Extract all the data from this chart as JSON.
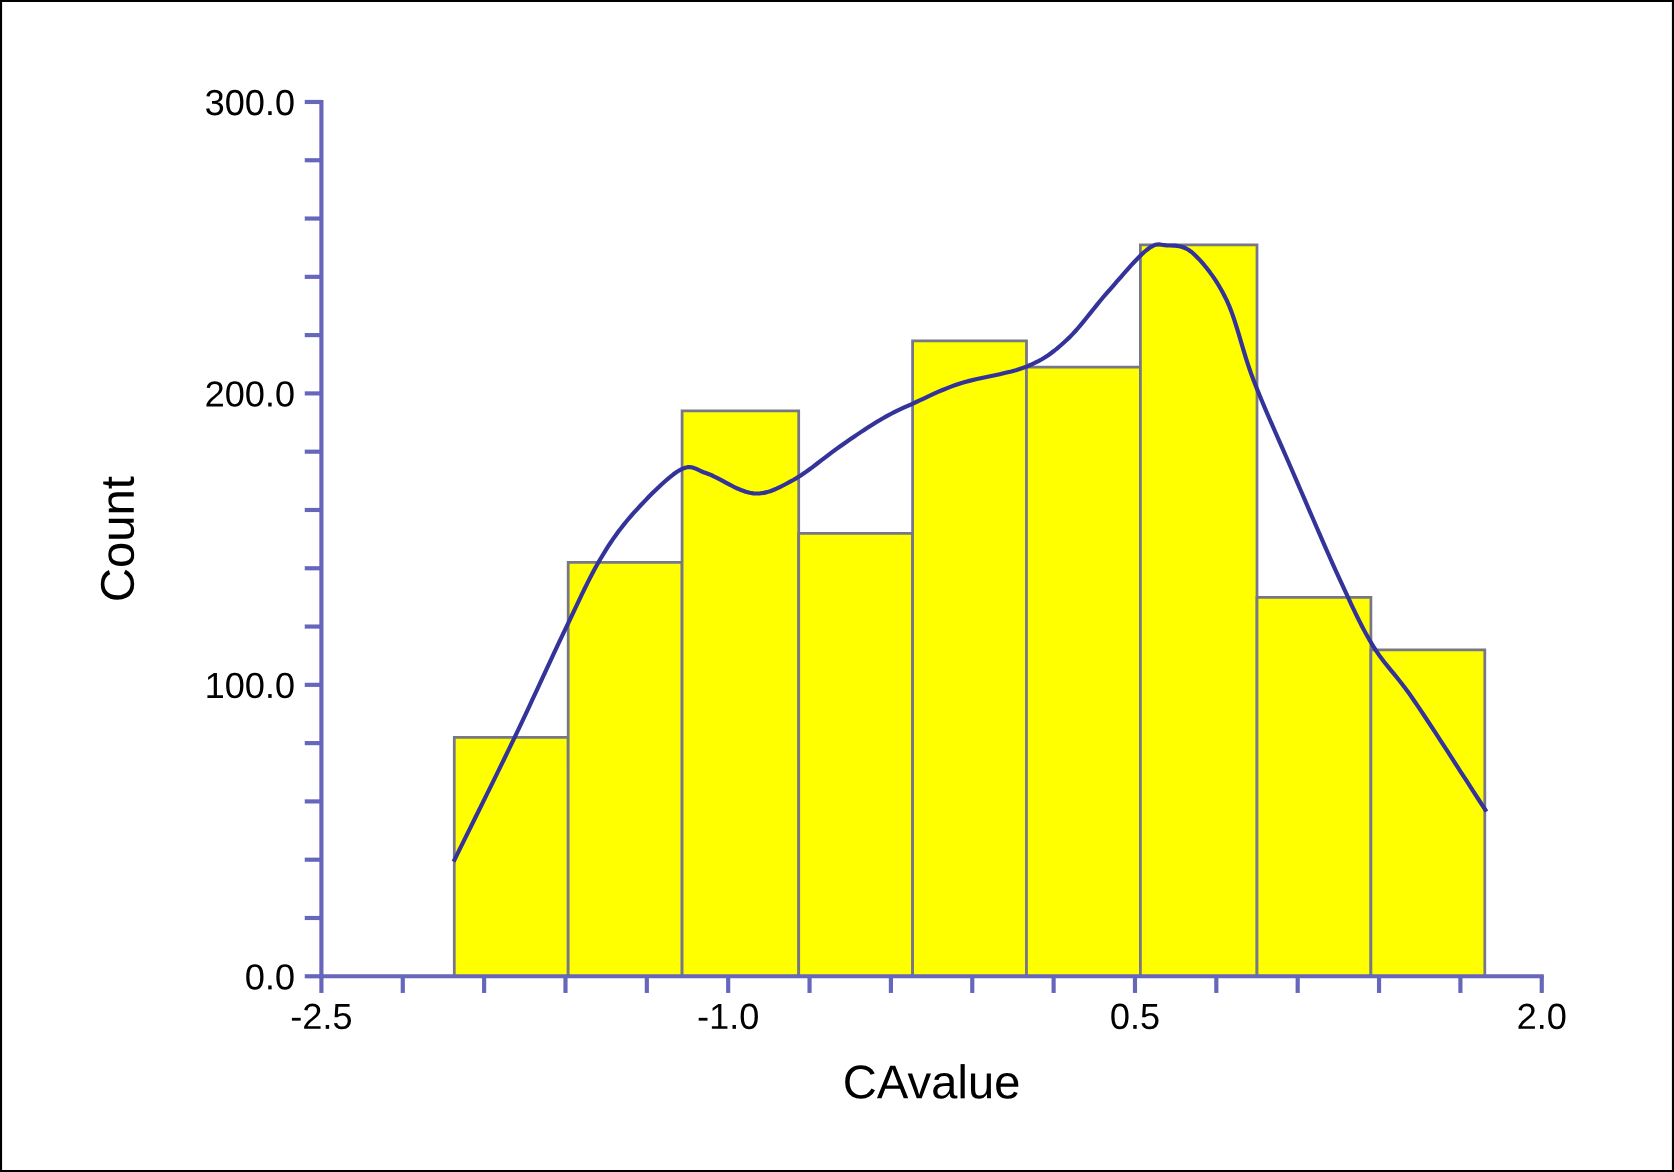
{
  "chart_data": {
    "type": "histogram",
    "xlabel": "CAvalue",
    "ylabel": "Count",
    "bins": [
      -2.01,
      -1.59,
      -1.17,
      -0.74,
      -0.32,
      0.1,
      0.52,
      0.95,
      1.37,
      1.79
    ],
    "values": [
      82,
      142,
      194,
      152,
      218,
      209,
      251,
      130,
      112
    ],
    "color": "#ffff00",
    "series": [
      {
        "type": "line",
        "color": "#333399",
        "x": [
          -2.009,
          -1.792,
          -1.596,
          -1.473,
          -1.35,
          -1.178,
          -1.08,
          -0.907,
          -0.76,
          -0.588,
          -0.44,
          -0.317,
          -0.145,
          0.1,
          0.248,
          0.395,
          0.543,
          0.617,
          0.715,
          0.838,
          0.937,
          1.084,
          1.256,
          1.379,
          1.527,
          1.792
        ],
        "values": [
          40.0,
          81.1,
          120.0,
          142.9,
          158.8,
          173.7,
          172.6,
          165.7,
          170.3,
          181.8,
          190.9,
          196.6,
          203.4,
          209.2,
          218.3,
          234.3,
          249.2,
          250.8,
          248.0,
          232.0,
          204.6,
          172.6,
          136.0,
          113.2,
          94.9,
          57.1
        ]
      }
    ],
    "xlim": [
      -2.5,
      2.0
    ],
    "ylim": [
      0,
      300
    ],
    "xticks": [
      {
        "value": -2.5,
        "label": "-2.5"
      },
      {
        "value": -2.2,
        "label": null
      },
      {
        "value": -1.9,
        "label": null
      },
      {
        "value": -1.6,
        "label": null
      },
      {
        "value": -1.3,
        "label": null
      },
      {
        "value": -1.0,
        "label": "-1.0"
      },
      {
        "value": -0.7,
        "label": null
      },
      {
        "value": -0.4,
        "label": null
      },
      {
        "value": -0.1,
        "label": null
      },
      {
        "value": 0.2,
        "label": null
      },
      {
        "value": 0.5,
        "label": "0.5"
      },
      {
        "value": 0.8,
        "label": null
      },
      {
        "value": 1.1,
        "label": null
      },
      {
        "value": 1.4,
        "label": null
      },
      {
        "value": 1.7,
        "label": null
      },
      {
        "value": 2.0,
        "label": "2.0"
      }
    ],
    "yticks": [
      {
        "value": 0,
        "label": "0.0"
      },
      {
        "value": 20,
        "label": null
      },
      {
        "value": 40,
        "label": null
      },
      {
        "value": 60,
        "label": null
      },
      {
        "value": 80,
        "label": null
      },
      {
        "value": 100,
        "label": "100.0"
      },
      {
        "value": 120,
        "label": null
      },
      {
        "value": 140,
        "label": null
      },
      {
        "value": 160,
        "label": null
      },
      {
        "value": 180,
        "label": null
      },
      {
        "value": 200,
        "label": "200.0"
      },
      {
        "value": 220,
        "label": null
      },
      {
        "value": 240,
        "label": null
      },
      {
        "value": 260,
        "label": null
      },
      {
        "value": 280,
        "label": null
      },
      {
        "value": 300,
        "label": "300.0"
      }
    ]
  }
}
